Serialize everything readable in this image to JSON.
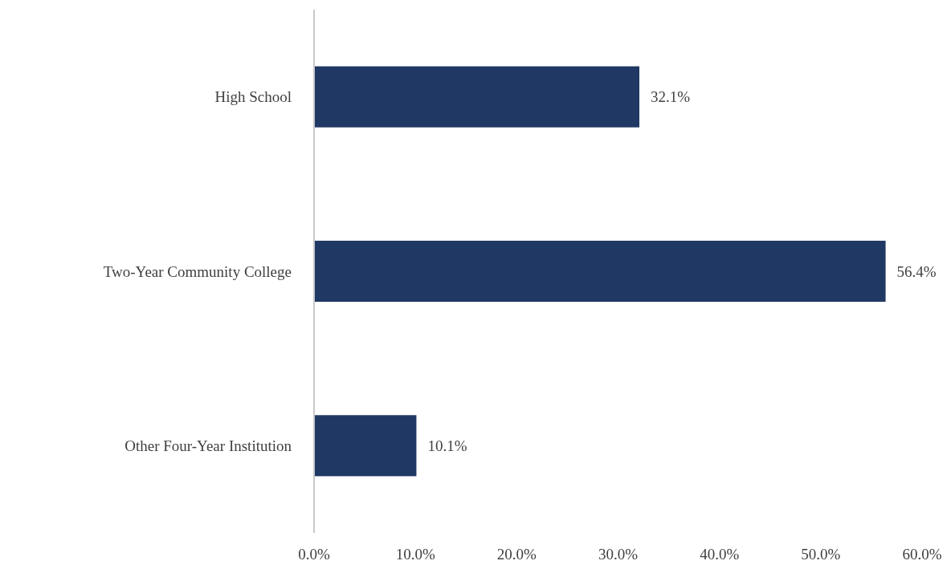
{
  "chart_data": {
    "type": "bar",
    "orientation": "horizontal",
    "categories": [
      "High School",
      "Two-Year Community College",
      "Other Four-Year Institution"
    ],
    "values": [
      32.1,
      56.4,
      10.1
    ],
    "value_labels": [
      "32.1%",
      "56.4%",
      "10.1%"
    ],
    "color": "#203864",
    "xlim": [
      0,
      60
    ],
    "xticks": [
      {
        "value": 0,
        "label": "0.0%"
      },
      {
        "value": 10,
        "label": "10.0%"
      },
      {
        "value": 20,
        "label": "20.0%"
      },
      {
        "value": 30,
        "label": "30.0%"
      },
      {
        "value": 40,
        "label": "40.0%"
      },
      {
        "value": 50,
        "label": "50.0%"
      },
      {
        "value": 60,
        "label": "60.0%"
      }
    ],
    "grid": false
  }
}
